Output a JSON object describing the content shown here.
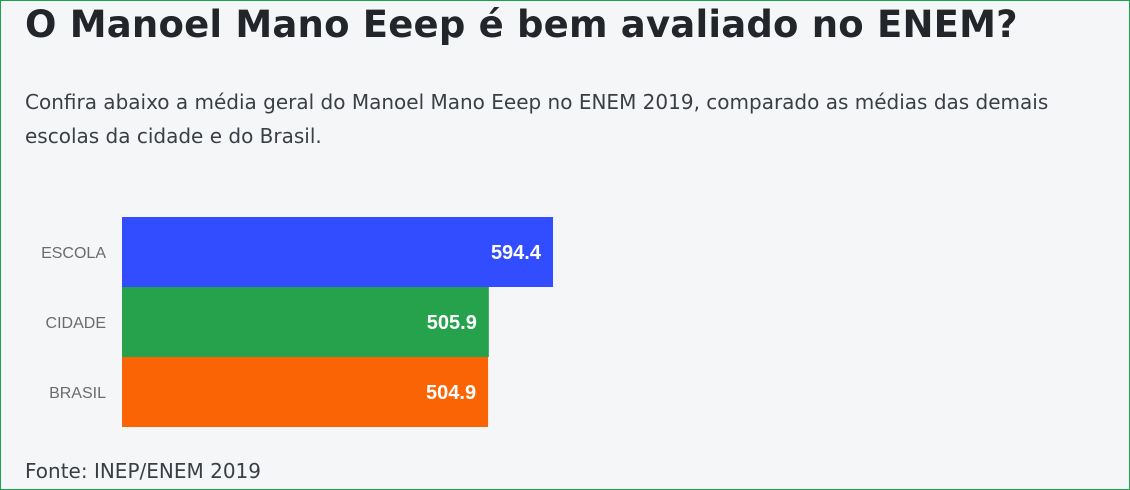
{
  "title": "O Manoel Mano Eeep é bem avaliado no ENEM?",
  "subtitle": "Confira abaixo a média geral do Manoel Mano Eeep no ENEM 2019, comparado as médias das demais escolas da cidade e do Brasil.",
  "source": "Fonte: INEP/ENEM 2019",
  "chart_data": {
    "type": "bar",
    "orientation": "horizontal",
    "categories": [
      "ESCOLA",
      "CIDADE",
      "BRASIL"
    ],
    "values": [
      594.4,
      505.9,
      504.9
    ],
    "value_labels": [
      "594.4",
      "505.9",
      "504.9"
    ],
    "colors": [
      "#314dff",
      "#26a24c",
      "#fb6404"
    ],
    "xlim": [
      0,
      594.4
    ],
    "grid": false,
    "title": "",
    "xlabel": "",
    "ylabel": ""
  }
}
